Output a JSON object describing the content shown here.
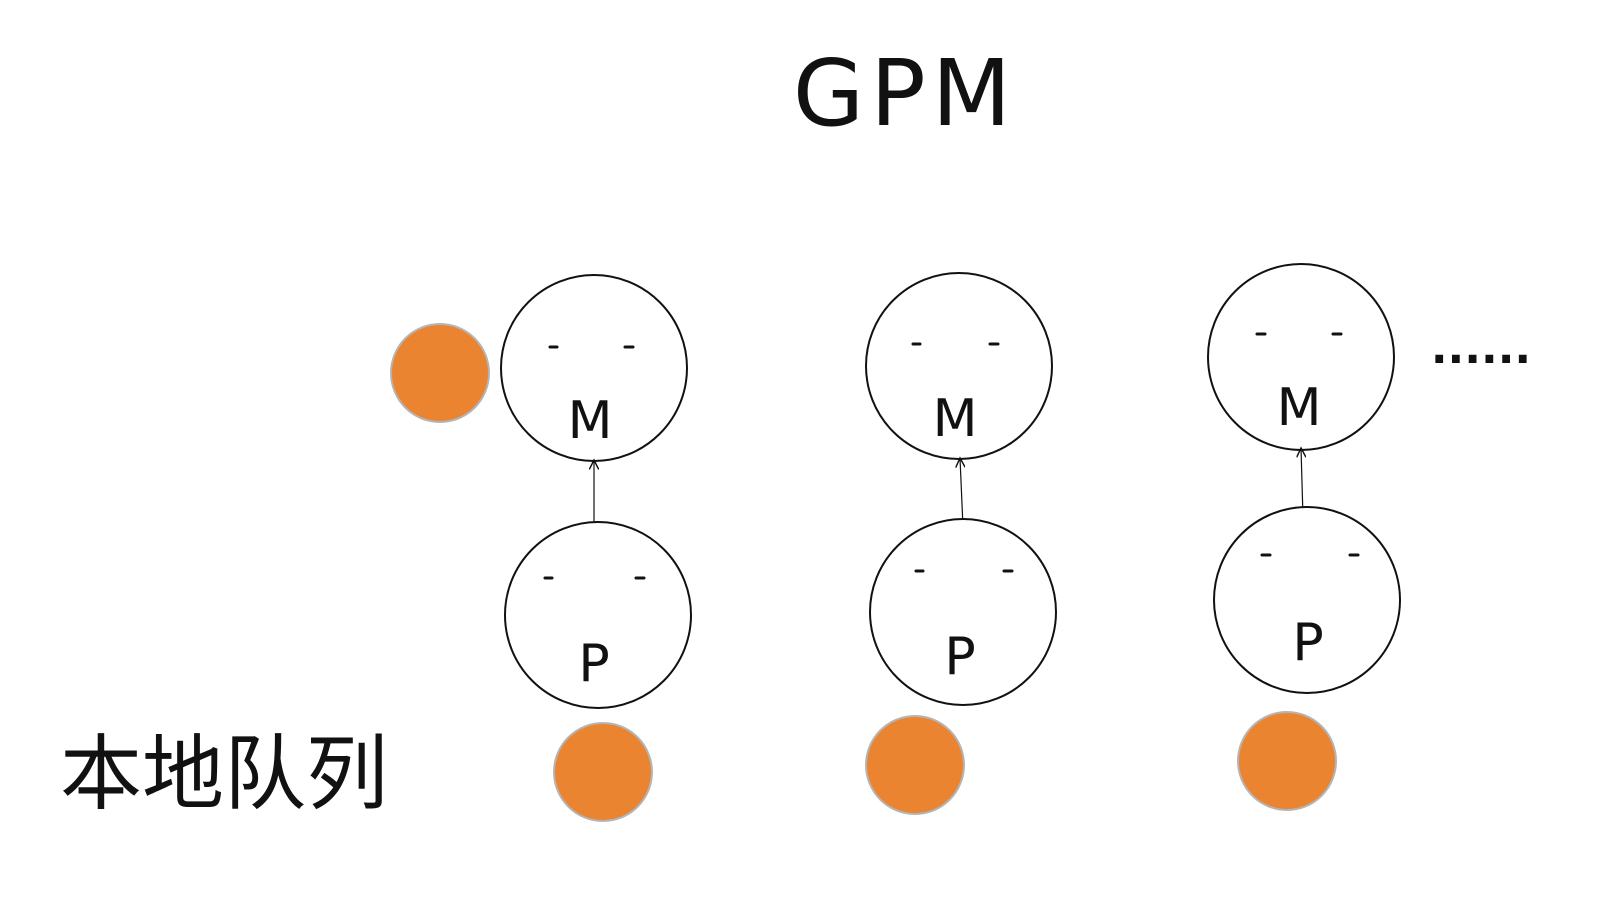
{
  "diagram": {
    "title": "GPM",
    "local_queue_label": "本地队列",
    "ellipsis": "......",
    "goroutine_color": "#ea8431",
    "columns": [
      {
        "m_label": "M",
        "p_label": "P",
        "running_goroutine": true,
        "queued_goroutines": 1
      },
      {
        "m_label": "M",
        "p_label": "P",
        "running_goroutine": false,
        "queued_goroutines": 1
      },
      {
        "m_label": "M",
        "p_label": "P",
        "running_goroutine": false,
        "queued_goroutines": 1
      }
    ]
  }
}
